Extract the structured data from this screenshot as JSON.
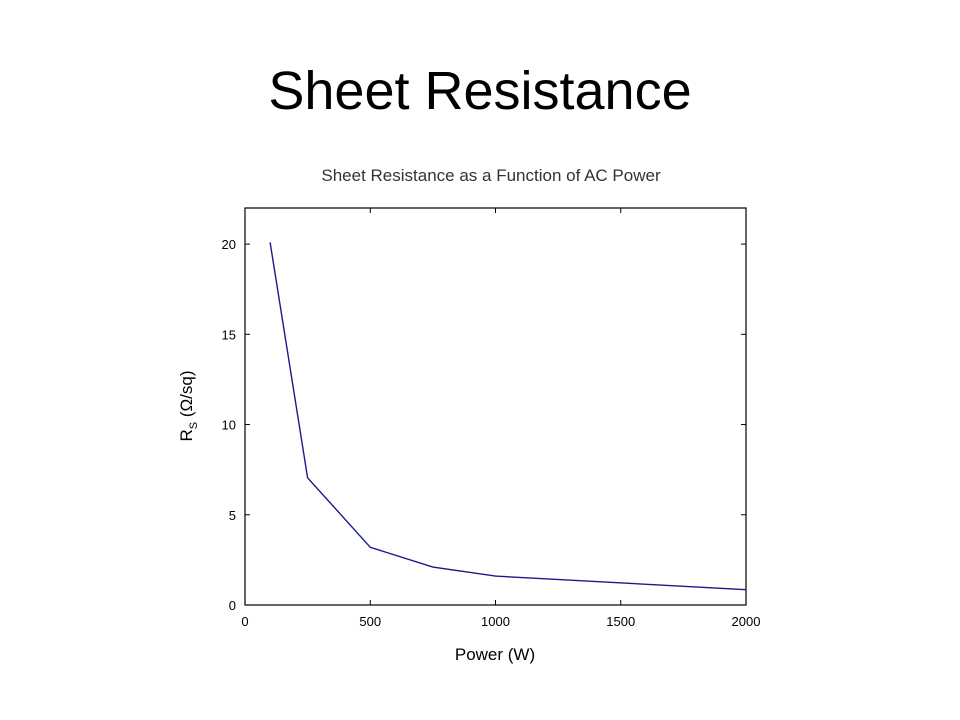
{
  "slide": {
    "title": "Sheet Resistance"
  },
  "colors": {
    "series": "#1a1a8c",
    "axis": "#000000"
  },
  "chart_data": {
    "type": "line",
    "title": "Sheet Resistance as a Function of AC Power",
    "xlabel": "Power (W)",
    "ylabel": {
      "main": "R",
      "sub": "S",
      "unit": " (Ω/sq)"
    },
    "xlim": [
      0,
      2000
    ],
    "ylim": [
      0,
      22
    ],
    "xticks": [
      0,
      500,
      1000,
      1500,
      2000
    ],
    "yticks": [
      0,
      5,
      10,
      15,
      20
    ],
    "grid": false,
    "series": [
      {
        "x": [
          100,
          250,
          500,
          750,
          1000,
          2000
        ],
        "y": [
          20.1,
          7.05,
          3.2,
          2.1,
          1.6,
          0.85
        ]
      }
    ]
  }
}
